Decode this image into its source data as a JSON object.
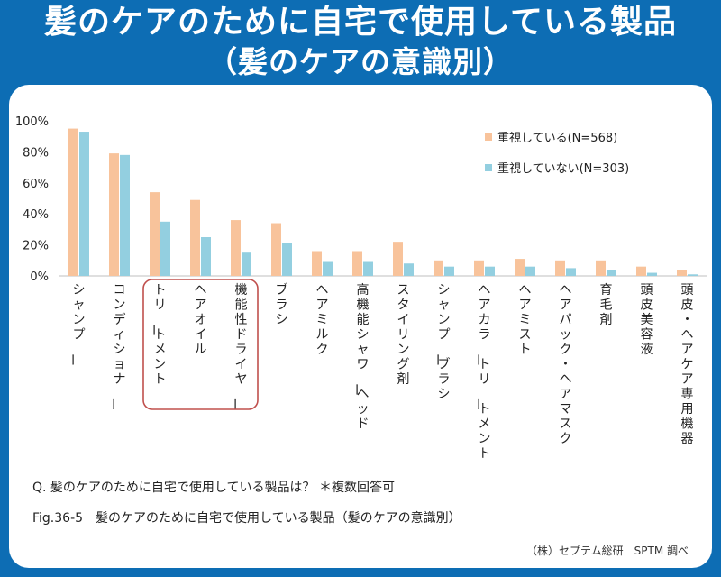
{
  "title": {
    "line1": "髪のケアのために自宅で使用している製品",
    "line2": "（髪のケアの意識別）"
  },
  "colors": {
    "frame": "#0d6db4",
    "series1": "#f8c39b",
    "series2": "#93cfe0",
    "highlight_box": "#c0504d",
    "axis_text": "#222222"
  },
  "notes": {
    "question": "Q. 髪のケアのために自宅で使用している製品は？ ＊複数回答可",
    "figure_caption": "Fig.36-5　髪のケアのために自宅で使用している製品（髪のケアの意識別）",
    "credit": "（株）セプテム総研　SPTM 調べ"
  },
  "chart_data": {
    "type": "bar",
    "title": "",
    "xlabel": "",
    "ylabel": "",
    "ylim": [
      0,
      100
    ],
    "yticks": [
      "0%",
      "20%",
      "40%",
      "60%",
      "80%",
      "100%"
    ],
    "grid": false,
    "legend_position": "top-right",
    "highlighted_categories": [
      "トリートメント",
      "ヘアオイル",
      "機能性ドライヤー"
    ],
    "categories": [
      "シャンプー",
      "コンディショナー",
      "トリートメント",
      "ヘアオイル",
      "機能性ドライヤー",
      "ブラシ",
      "ヘアミルク",
      "高機能シャワーヘッド",
      "スタイリング剤",
      "シャンプーブラシ",
      "ヘアカラートリートメント",
      "ヘアミスト",
      "ヘアパック・ヘアマスク",
      "育毛剤",
      "頭皮美容液",
      "頭皮・ヘアケア専用機器"
    ],
    "series": [
      {
        "name": "重視している(N=568)",
        "values": [
          95,
          79,
          54,
          49,
          36,
          34,
          16,
          16,
          22,
          10,
          10,
          11,
          10,
          10,
          6,
          4
        ]
      },
      {
        "name": "重視していない(N=303)",
        "values": [
          93,
          78,
          35,
          25,
          15,
          21,
          9,
          9,
          8,
          6,
          6,
          6,
          5,
          4,
          2,
          1
        ]
      }
    ]
  }
}
